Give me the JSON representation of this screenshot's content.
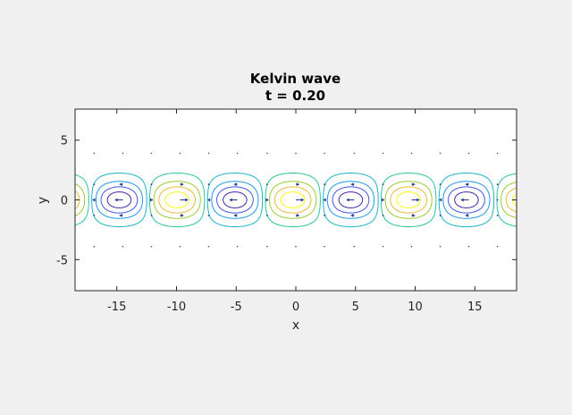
{
  "chart_data": {
    "type": "contour",
    "title_lines": [
      "Kelvin wave",
      "t = 0.20"
    ],
    "xlabel": "x",
    "ylabel": "y",
    "xlim": [
      -18.5,
      18.5
    ],
    "ylim": [
      -7.6,
      7.6
    ],
    "x_ticks": [
      -15,
      -10,
      -5,
      0,
      5,
      10,
      15
    ],
    "x_tick_labels": [
      "-15",
      "-10",
      "-5",
      "0",
      "5",
      "10",
      "15"
    ],
    "y_ticks": [
      5,
      0,
      -5
    ],
    "y_tick_labels": [
      "5",
      "0",
      "-5"
    ],
    "grid": false,
    "legend": "none",
    "field": {
      "form": "cos(k x) * exp(-y^2/2)",
      "wavelength": 9.7,
      "crest_x": -0.25
    },
    "contour_levels": [
      -0.8,
      -0.55,
      -0.3,
      -0.08,
      0.08,
      0.3,
      0.55,
      0.8
    ],
    "colormap": [
      "#3e26a8",
      "#4254e8",
      "#1f98e9",
      "#1bb4c9",
      "#2bc39c",
      "#9cc936",
      "#ecba38",
      "#f9fb0e"
    ],
    "arrow_rows_y": [
      -1.3,
      0,
      1.3
    ],
    "arrow_columns_x": [
      -19.4,
      -16.9,
      -14.5,
      -12.1,
      -9.7,
      -7.3,
      -4.9,
      -2.4,
      0,
      2.4,
      4.9,
      7.3,
      9.7,
      12.1,
      14.5,
      16.9,
      19.4
    ],
    "colors": {
      "figure_bg": "#f0f0f0",
      "axes_bg": "#ffffff",
      "axes_edge": "#262626",
      "arrow": "#1f3a8a"
    }
  }
}
